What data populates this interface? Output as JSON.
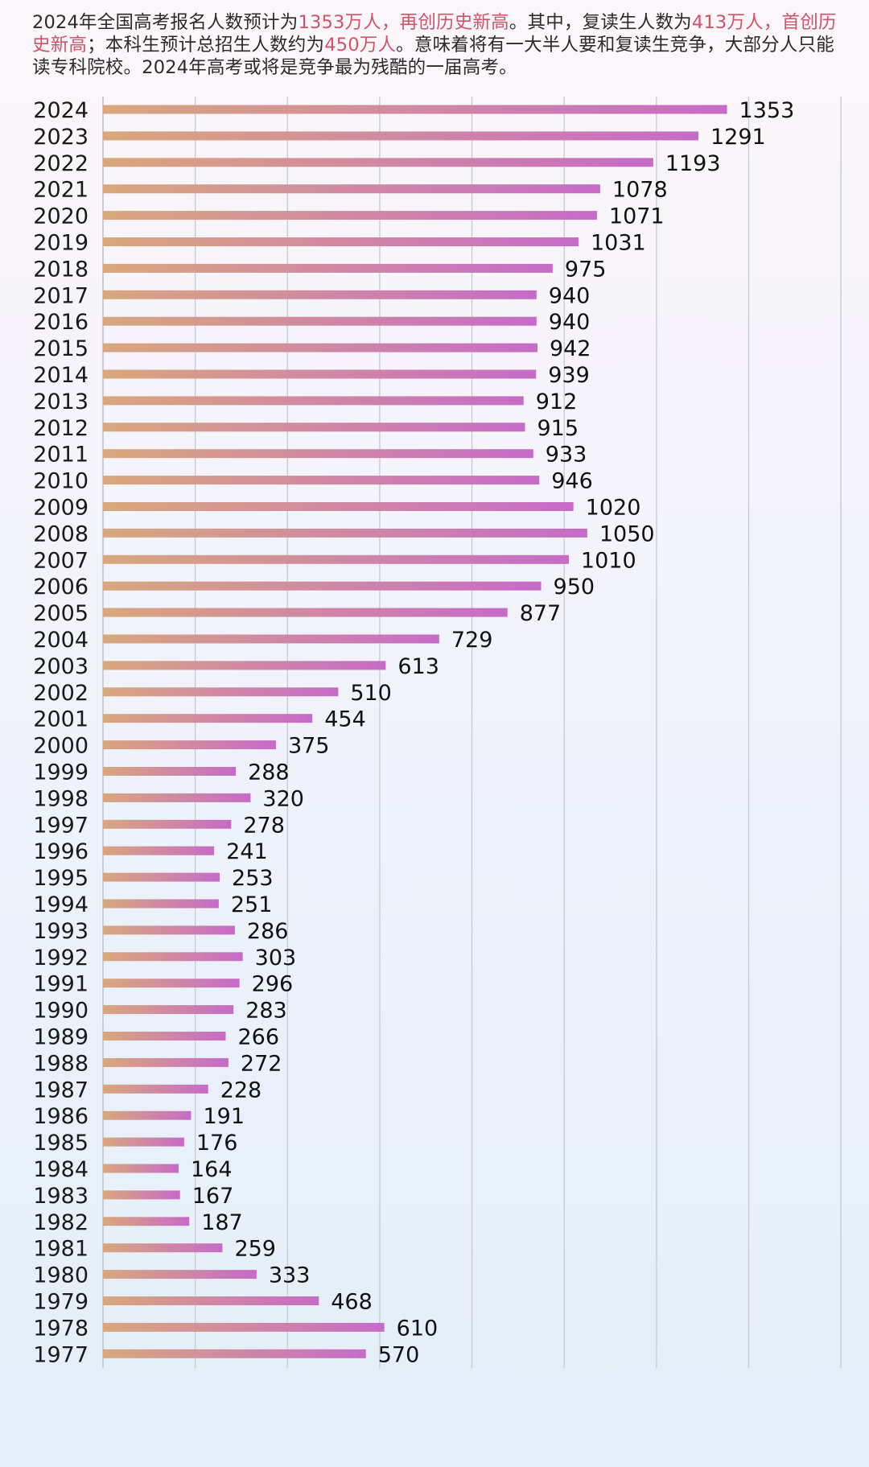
{
  "headline": {
    "part1": "2024年全国高考报名人数预计为",
    "hl1": "1353万人，再创历史新高",
    "part2": "。其中，复读生人数为",
    "hl2": "413万人，首创历史新高",
    "part3": "；本科生预计总招生人数约为",
    "hl3": "450万人",
    "part4": "。意味着将有一大半人要和复读生竞争，大部分人只能读专科院校。2024年高考或将是竞争最为残酷的一届高考。"
  },
  "colors": {
    "bar_start": "#d9a77c",
    "bar_end": "#c66bc8",
    "gridline": "#c9ccd2",
    "highlight": "#d2536a"
  },
  "chart_data": {
    "type": "bar",
    "orientation": "horizontal",
    "title": "",
    "xlabel": "",
    "ylabel": "",
    "xlim": [
      0,
      1600
    ],
    "grid": true,
    "categories": [
      "2024",
      "2023",
      "2022",
      "2021",
      "2020",
      "2019",
      "2018",
      "2017",
      "2016",
      "2015",
      "2014",
      "2013",
      "2012",
      "2011",
      "2010",
      "2009",
      "2008",
      "2007",
      "2006",
      "2005",
      "2004",
      "2003",
      "2002",
      "2001",
      "2000",
      "1999",
      "1998",
      "1997",
      "1996",
      "1995",
      "1994",
      "1993",
      "1992",
      "1991",
      "1990",
      "1989",
      "1988",
      "1987",
      "1986",
      "1985",
      "1984",
      "1983",
      "1982",
      "1981",
      "1980",
      "1979",
      "1978",
      "1977"
    ],
    "values": [
      1353,
      1291,
      1193,
      1078,
      1071,
      1031,
      975,
      940,
      940,
      942,
      939,
      912,
      915,
      933,
      946,
      1020,
      1050,
      1010,
      950,
      877,
      729,
      613,
      510,
      454,
      375,
      288,
      320,
      278,
      241,
      253,
      251,
      286,
      303,
      296,
      283,
      266,
      272,
      228,
      191,
      176,
      164,
      167,
      187,
      259,
      333,
      468,
      610,
      570
    ],
    "value_labels": [
      "1353",
      "1291",
      "1193",
      "1078",
      "1071",
      "1031",
      "975",
      "940",
      "940",
      "942",
      "939",
      "912",
      "915",
      "933",
      "946",
      "1020",
      "1050",
      "1010",
      "950",
      "877",
      "729",
      "613",
      "510",
      "454",
      "375",
      "288",
      "320",
      "278",
      "241",
      "253",
      "251",
      "286",
      "303",
      "296",
      "283",
      "266",
      "272",
      "228",
      "191",
      "176",
      "164",
      "167",
      "187",
      "259",
      "333",
      "468",
      "610",
      "570"
    ]
  }
}
